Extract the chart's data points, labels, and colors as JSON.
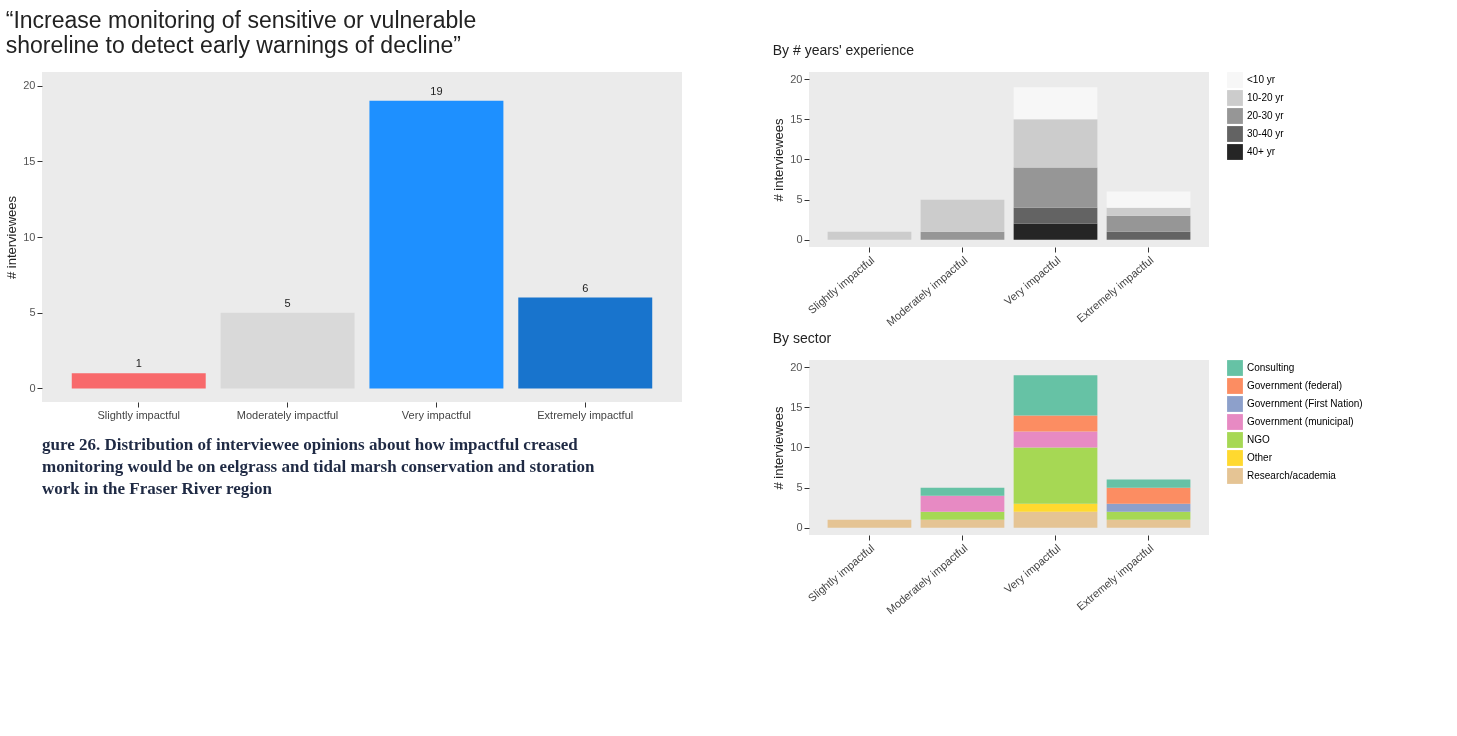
{
  "chart_data": [
    {
      "type": "bar",
      "title": "“Increase monitoring of sensitive or vulnerable shoreline to detect early warnings of decline”",
      "ylabel": "# interviewees",
      "categories": [
        "Slightly impactful",
        "Moderately impactful",
        "Very impactful",
        "Extremely impactful"
      ],
      "values": [
        1,
        5,
        19,
        6
      ],
      "colors": [
        "#f8696b",
        "#d9d9d9",
        "#1e90ff",
        "#1874cd"
      ],
      "ylim": [
        -0.9,
        20.9
      ],
      "yticks": [
        0,
        5,
        10,
        15,
        20
      ],
      "data_labels": true,
      "grid": false,
      "annotations": [
        "gure 26. Distribution of interviewee opinions about how impactful creased monitoring would be on eelgrass and tidal marsh conservation and storation work in the Fraser River region"
      ]
    },
    {
      "type": "bar",
      "stacked": true,
      "title": "By # years' experience",
      "ylabel": "# interviewees",
      "categories": [
        "Slightly impactful",
        "Moderately impactful",
        "Very impactful",
        "Extremely impactful"
      ],
      "ylim": [
        -0.9,
        20.9
      ],
      "yticks": [
        0,
        5,
        10,
        15,
        20
      ],
      "grid": false,
      "legend": "right",
      "series": [
        {
          "name": "40+ yr",
          "color": "#252525",
          "values": [
            0,
            0,
            2,
            0
          ]
        },
        {
          "name": "30-40 yr",
          "color": "#636363",
          "values": [
            0,
            0,
            2,
            1
          ]
        },
        {
          "name": "20-30 yr",
          "color": "#969696",
          "values": [
            0,
            1,
            5,
            2
          ]
        },
        {
          "name": "10-20 yr",
          "color": "#cccccc",
          "values": [
            1,
            4,
            6,
            1
          ]
        },
        {
          "name": "<10 yr",
          "color": "#f7f7f7",
          "values": [
            0,
            0,
            4,
            2
          ]
        }
      ]
    },
    {
      "type": "bar",
      "stacked": true,
      "title": "By sector",
      "ylabel": "# interviewees",
      "categories": [
        "Slightly impactful",
        "Moderately impactful",
        "Very impactful",
        "Extremely impactful"
      ],
      "ylim": [
        -0.9,
        20.9
      ],
      "yticks": [
        0,
        5,
        10,
        15,
        20
      ],
      "grid": false,
      "legend": "right",
      "series": [
        {
          "name": "Research/academia",
          "color": "#e5c494",
          "values": [
            1,
            1,
            2,
            1
          ]
        },
        {
          "name": "Other",
          "color": "#ffd92f",
          "values": [
            0,
            0,
            1,
            0
          ]
        },
        {
          "name": "NGO",
          "color": "#a6d854",
          "values": [
            0,
            1,
            7,
            1
          ]
        },
        {
          "name": "Government (municipal)",
          "color": "#e78ac3",
          "values": [
            0,
            2,
            2,
            0
          ]
        },
        {
          "name": "Government (First Nation)",
          "color": "#8da0cb",
          "values": [
            0,
            0,
            0,
            1
          ]
        },
        {
          "name": "Government (federal)",
          "color": "#fc8d62",
          "values": [
            0,
            0,
            2,
            2
          ]
        },
        {
          "name": "Consulting",
          "color": "#66c2a5",
          "values": [
            0,
            1,
            5,
            1
          ]
        }
      ]
    }
  ]
}
